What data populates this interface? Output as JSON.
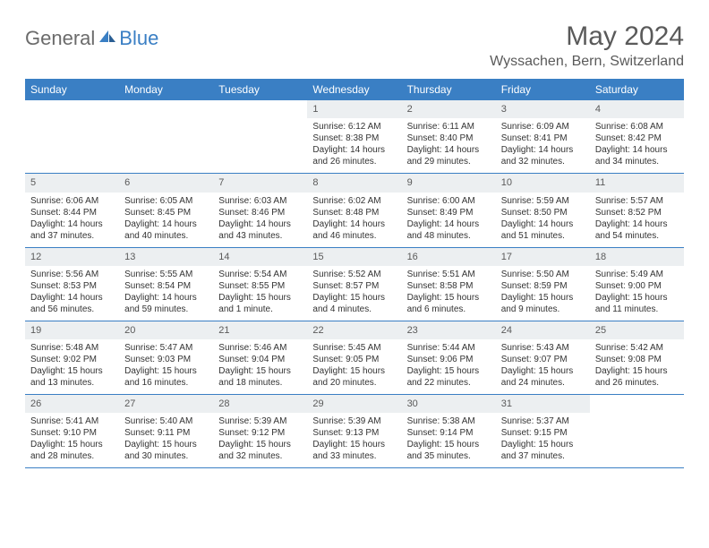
{
  "brand": {
    "general": "General",
    "blue": "Blue"
  },
  "title": "May 2024",
  "location": "Wyssachen, Bern, Switzerland",
  "colors": {
    "header_bg": "#3a7fc4",
    "header_text": "#ffffff",
    "daynum_bg": "#eceff1",
    "text": "#333333",
    "title_text": "#5a5a5a",
    "border": "#3a7fc4"
  },
  "weekdays": [
    "Sunday",
    "Monday",
    "Tuesday",
    "Wednesday",
    "Thursday",
    "Friday",
    "Saturday"
  ],
  "weeks": [
    [
      null,
      null,
      null,
      {
        "n": "1",
        "sr": "6:12 AM",
        "ss": "8:38 PM",
        "dl": "14 hours and 26 minutes."
      },
      {
        "n": "2",
        "sr": "6:11 AM",
        "ss": "8:40 PM",
        "dl": "14 hours and 29 minutes."
      },
      {
        "n": "3",
        "sr": "6:09 AM",
        "ss": "8:41 PM",
        "dl": "14 hours and 32 minutes."
      },
      {
        "n": "4",
        "sr": "6:08 AM",
        "ss": "8:42 PM",
        "dl": "14 hours and 34 minutes."
      }
    ],
    [
      {
        "n": "5",
        "sr": "6:06 AM",
        "ss": "8:44 PM",
        "dl": "14 hours and 37 minutes."
      },
      {
        "n": "6",
        "sr": "6:05 AM",
        "ss": "8:45 PM",
        "dl": "14 hours and 40 minutes."
      },
      {
        "n": "7",
        "sr": "6:03 AM",
        "ss": "8:46 PM",
        "dl": "14 hours and 43 minutes."
      },
      {
        "n": "8",
        "sr": "6:02 AM",
        "ss": "8:48 PM",
        "dl": "14 hours and 46 minutes."
      },
      {
        "n": "9",
        "sr": "6:00 AM",
        "ss": "8:49 PM",
        "dl": "14 hours and 48 minutes."
      },
      {
        "n": "10",
        "sr": "5:59 AM",
        "ss": "8:50 PM",
        "dl": "14 hours and 51 minutes."
      },
      {
        "n": "11",
        "sr": "5:57 AM",
        "ss": "8:52 PM",
        "dl": "14 hours and 54 minutes."
      }
    ],
    [
      {
        "n": "12",
        "sr": "5:56 AM",
        "ss": "8:53 PM",
        "dl": "14 hours and 56 minutes."
      },
      {
        "n": "13",
        "sr": "5:55 AM",
        "ss": "8:54 PM",
        "dl": "14 hours and 59 minutes."
      },
      {
        "n": "14",
        "sr": "5:54 AM",
        "ss": "8:55 PM",
        "dl": "15 hours and 1 minute."
      },
      {
        "n": "15",
        "sr": "5:52 AM",
        "ss": "8:57 PM",
        "dl": "15 hours and 4 minutes."
      },
      {
        "n": "16",
        "sr": "5:51 AM",
        "ss": "8:58 PM",
        "dl": "15 hours and 6 minutes."
      },
      {
        "n": "17",
        "sr": "5:50 AM",
        "ss": "8:59 PM",
        "dl": "15 hours and 9 minutes."
      },
      {
        "n": "18",
        "sr": "5:49 AM",
        "ss": "9:00 PM",
        "dl": "15 hours and 11 minutes."
      }
    ],
    [
      {
        "n": "19",
        "sr": "5:48 AM",
        "ss": "9:02 PM",
        "dl": "15 hours and 13 minutes."
      },
      {
        "n": "20",
        "sr": "5:47 AM",
        "ss": "9:03 PM",
        "dl": "15 hours and 16 minutes."
      },
      {
        "n": "21",
        "sr": "5:46 AM",
        "ss": "9:04 PM",
        "dl": "15 hours and 18 minutes."
      },
      {
        "n": "22",
        "sr": "5:45 AM",
        "ss": "9:05 PM",
        "dl": "15 hours and 20 minutes."
      },
      {
        "n": "23",
        "sr": "5:44 AM",
        "ss": "9:06 PM",
        "dl": "15 hours and 22 minutes."
      },
      {
        "n": "24",
        "sr": "5:43 AM",
        "ss": "9:07 PM",
        "dl": "15 hours and 24 minutes."
      },
      {
        "n": "25",
        "sr": "5:42 AM",
        "ss": "9:08 PM",
        "dl": "15 hours and 26 minutes."
      }
    ],
    [
      {
        "n": "26",
        "sr": "5:41 AM",
        "ss": "9:10 PM",
        "dl": "15 hours and 28 minutes."
      },
      {
        "n": "27",
        "sr": "5:40 AM",
        "ss": "9:11 PM",
        "dl": "15 hours and 30 minutes."
      },
      {
        "n": "28",
        "sr": "5:39 AM",
        "ss": "9:12 PM",
        "dl": "15 hours and 32 minutes."
      },
      {
        "n": "29",
        "sr": "5:39 AM",
        "ss": "9:13 PM",
        "dl": "15 hours and 33 minutes."
      },
      {
        "n": "30",
        "sr": "5:38 AM",
        "ss": "9:14 PM",
        "dl": "15 hours and 35 minutes."
      },
      {
        "n": "31",
        "sr": "5:37 AM",
        "ss": "9:15 PM",
        "dl": "15 hours and 37 minutes."
      },
      null
    ]
  ],
  "labels": {
    "sunrise": "Sunrise:",
    "sunset": "Sunset:",
    "daylight": "Daylight:"
  }
}
